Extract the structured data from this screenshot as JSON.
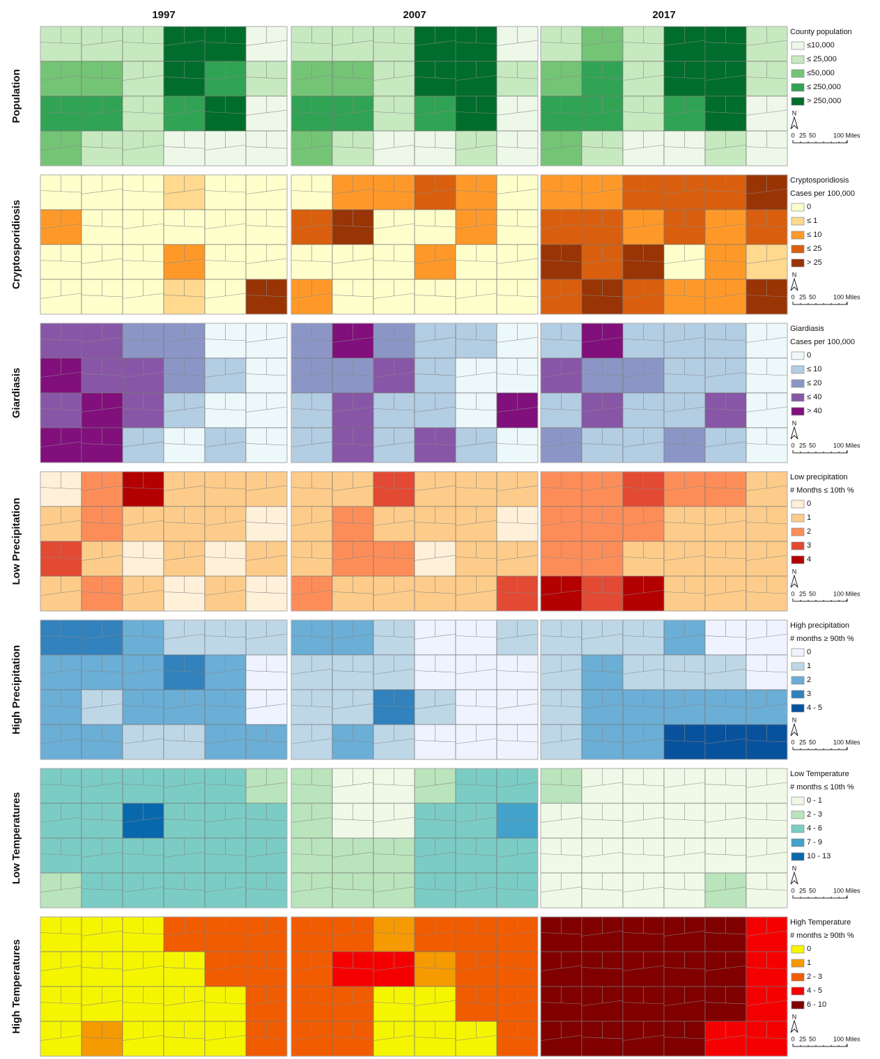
{
  "columns": [
    "1997",
    "2007",
    "2017"
  ],
  "north": "N",
  "scale_labels": [
    "0",
    "25",
    "50",
    "100 Miles"
  ],
  "rows": [
    {
      "label": "Population",
      "legend_title": [
        "County population"
      ],
      "classes": [
        "≤10,000",
        "≤ 25,000",
        "≤50,000",
        "≤ 250,000",
        "> 250,000"
      ],
      "colors": [
        "#edf8e9",
        "#c7e9c0",
        "#74c476",
        "#31a354",
        "#006d2c"
      ],
      "maps": [
        [
          "111440",
          "221431",
          "331340",
          "211000"
        ],
        [
          "111440",
          "221441",
          "331340",
          "210010"
        ],
        [
          "121441",
          "231441",
          "331340",
          "210010"
        ]
      ]
    },
    {
      "label": "Cryptosporidiosis",
      "legend_title": [
        "Cryptosporidiosis",
        "Cases per 100,000"
      ],
      "classes": [
        "0",
        "≤ 1",
        "≤ 10",
        "≤ 25",
        "> 25"
      ],
      "colors": [
        "#ffffcc",
        "#fed98e",
        "#fe9929",
        "#d95f0e",
        "#993404"
      ],
      "maps": [
        [
          "000100",
          "200000",
          "000200",
          "000104"
        ],
        [
          "022320",
          "340020",
          "000200",
          "200000"
        ],
        [
          "223334",
          "332323",
          "434021",
          "343224"
        ]
      ]
    },
    {
      "label": "Giardiasis",
      "legend_title": [
        "Giardiasis",
        "Cases per 100,000"
      ],
      "classes": [
        "0",
        "≤ 10",
        "≤ 20",
        "≤ 40",
        "> 40"
      ],
      "colors": [
        "#edf8fb",
        "#b3cde3",
        "#8c96c6",
        "#8856a7",
        "#810f7c"
      ],
      "maps": [
        [
          "332200",
          "433210",
          "343100",
          "441010"
        ],
        [
          "242110",
          "223100",
          "131104",
          "131310"
        ],
        [
          "141110",
          "322110",
          "131130",
          "211210"
        ]
      ]
    },
    {
      "label": "Low Precipitation",
      "legend_title": [
        "Low precipitation",
        "# Months ≤ 10th %"
      ],
      "classes": [
        "0",
        "1",
        "2",
        "3",
        "4"
      ],
      "colors": [
        "#fef0d9",
        "#fdcc8a",
        "#fc8d59",
        "#e34a33",
        "#b30000"
      ],
      "maps": [
        [
          "024111",
          "121110",
          "310101",
          "121010"
        ],
        [
          "113111",
          "121110",
          "122011",
          "211113"
        ],
        [
          "223221",
          "222111",
          "221111",
          "434111"
        ]
      ]
    },
    {
      "label": "High Precipitation",
      "legend_title": [
        "High precipitation",
        "# months ≥ 90th %"
      ],
      "classes": [
        "0",
        "1",
        "2",
        "3",
        "4 - 5"
      ],
      "colors": [
        "#eff3ff",
        "#bdd7e7",
        "#6baed6",
        "#3182bd",
        "#08519c"
      ],
      "maps": [
        [
          "332111",
          "222320",
          "212220",
          "221122"
        ],
        [
          "221001",
          "111000",
          "113100",
          "121000"
        ],
        [
          "111200",
          "121110",
          "122222",
          "122444"
        ]
      ]
    },
    {
      "label": "Low Temperatures",
      "legend_title": [
        "Low Temperature",
        "# months ≤ 10th %"
      ],
      "classes": [
        "0 - 1",
        "2 - 3",
        "4 - 6",
        "7 - 9",
        "10 - 13"
      ],
      "colors": [
        "#f0f9e8",
        "#bae4bc",
        "#7bccc4",
        "#43a2ca",
        "#0868ac"
      ],
      "maps": [
        [
          "222221",
          "224222",
          "222222",
          "122222"
        ],
        [
          "100122",
          "100223",
          "111222",
          "111222"
        ],
        [
          "100000",
          "000000",
          "000000",
          "000010"
        ]
      ]
    },
    {
      "label": "High Temperatures",
      "legend_title": [
        "High Temperature",
        "# months ≥ 90th %"
      ],
      "classes": [
        "0",
        "1",
        "2 - 3",
        "4 - 5",
        "6 - 10"
      ],
      "colors": [
        "#f5f500",
        "#f59a00",
        "#f25c00",
        "#f50000",
        "#800000"
      ],
      "maps": [
        [
          "000222",
          "000022",
          "000002",
          "010002"
        ],
        [
          "221222",
          "233122",
          "220022",
          "220002"
        ],
        [
          "444443",
          "444443",
          "444443",
          "444433"
        ]
      ]
    }
  ]
}
